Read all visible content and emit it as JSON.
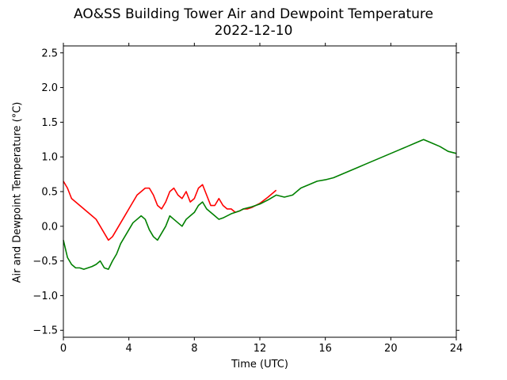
{
  "chart_data": {
    "type": "line",
    "title": "AO&SS Building Tower Air and Dewpoint Temperature",
    "subtitle": "2022-12-10",
    "xlabel": "Time (UTC)",
    "ylabel": "Air and Dewpoint Temperature (°C)",
    "xlim": [
      0,
      24
    ],
    "ylim": [
      -1.6,
      2.6
    ],
    "x_ticks": [
      "0",
      "4",
      "8",
      "12",
      "16",
      "20",
      "24"
    ],
    "y_ticks": [
      "−1.5",
      "−1.0",
      "−0.5",
      "0.0",
      "0.5",
      "1.0",
      "1.5",
      "2.0",
      "2.5"
    ],
    "grid": false,
    "series": [
      {
        "color": "#ff0000",
        "x": [
          0,
          0.25,
          0.5,
          0.75,
          1.0,
          1.25,
          1.5,
          1.75,
          2.0,
          2.25,
          2.5,
          2.75,
          3.0,
          3.25,
          3.5,
          3.75,
          4.0,
          4.25,
          4.5,
          4.75,
          5.0,
          5.25,
          5.5,
          5.75,
          6.0,
          6.25,
          6.5,
          6.75,
          7.0,
          7.25,
          7.5,
          7.75,
          8.0,
          8.25,
          8.5,
          8.75,
          9.0,
          9.25,
          9.5,
          9.75,
          10.0,
          10.25,
          10.5,
          10.75,
          11.0,
          11.25,
          11.5,
          11.75,
          12.0,
          12.5,
          13.0
        ],
        "y": [
          0.65,
          0.55,
          0.4,
          0.35,
          0.3,
          0.25,
          0.2,
          0.15,
          0.1,
          0.0,
          -0.1,
          -0.2,
          -0.15,
          -0.05,
          0.05,
          0.15,
          0.25,
          0.35,
          0.45,
          0.5,
          0.55,
          0.55,
          0.45,
          0.3,
          0.25,
          0.35,
          0.5,
          0.55,
          0.45,
          0.4,
          0.5,
          0.35,
          0.4,
          0.55,
          0.6,
          0.45,
          0.3,
          0.3,
          0.4,
          0.3,
          0.25,
          0.25,
          0.2,
          0.22,
          0.25,
          0.25,
          0.27,
          0.3,
          0.33,
          0.42,
          0.52
        ]
      },
      {
        "color": "#008000",
        "x": [
          0,
          0.25,
          0.5,
          0.75,
          1.0,
          1.25,
          1.5,
          1.75,
          2.0,
          2.25,
          2.5,
          2.75,
          3.0,
          3.25,
          3.5,
          3.75,
          4.0,
          4.25,
          4.5,
          4.75,
          5.0,
          5.25,
          5.5,
          5.75,
          6.0,
          6.25,
          6.5,
          6.75,
          7.0,
          7.25,
          7.5,
          7.75,
          8.0,
          8.25,
          8.5,
          8.75,
          9.0,
          9.25,
          9.5,
          9.75,
          10.0,
          10.25,
          10.5,
          10.75,
          11.0,
          11.5,
          12.0,
          12.5,
          13.0,
          13.5,
          14.0,
          14.5,
          15.0,
          15.5,
          16.0,
          16.5,
          17.0,
          17.5,
          18.0,
          18.5,
          19.0,
          19.5,
          20.0,
          20.5,
          21.0,
          21.5,
          22.0,
          22.5,
          23.0,
          23.5,
          24.0
        ],
        "y": [
          -0.2,
          -0.45,
          -0.55,
          -0.6,
          -0.6,
          -0.62,
          -0.6,
          -0.58,
          -0.55,
          -0.5,
          -0.6,
          -0.62,
          -0.5,
          -0.4,
          -0.25,
          -0.15,
          -0.05,
          0.05,
          0.1,
          0.15,
          0.1,
          -0.05,
          -0.15,
          -0.2,
          -0.1,
          0.0,
          0.15,
          0.1,
          0.05,
          0.0,
          0.1,
          0.15,
          0.2,
          0.3,
          0.35,
          0.25,
          0.2,
          0.15,
          0.1,
          0.12,
          0.15,
          0.18,
          0.2,
          0.22,
          0.25,
          0.28,
          0.32,
          0.38,
          0.45,
          0.42,
          0.45,
          0.55,
          0.6,
          0.65,
          0.67,
          0.7,
          0.75,
          0.8,
          0.85,
          0.9,
          0.95,
          1.0,
          1.05,
          1.1,
          1.15,
          1.2,
          1.25,
          1.2,
          1.15,
          1.08,
          1.05
        ]
      }
    ]
  }
}
